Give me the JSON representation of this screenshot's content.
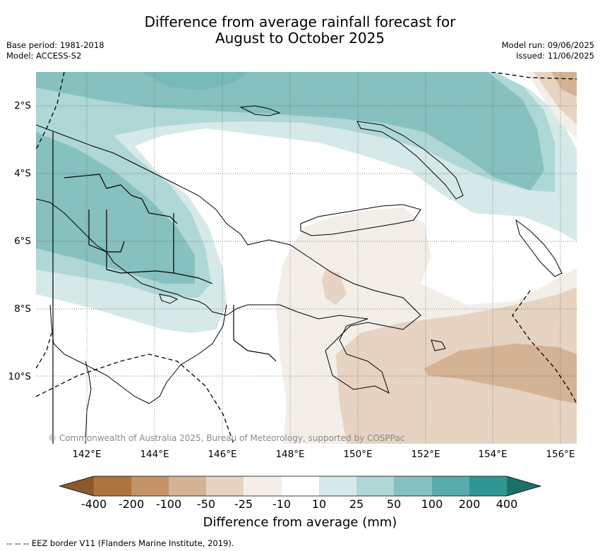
{
  "title_line1": "Difference from average rainfall forecast for",
  "title_line2": "August to October 2025",
  "meta_left": [
    "Base period: 1981-2018",
    "Model: ACCESS-S2"
  ],
  "meta_right": [
    "Model run: 09/06/2025",
    "Issued: 11/06/2025"
  ],
  "copyright": "© Commonwealth of Australia 2025, Bureau of Meteorology, supported by COSPPac",
  "longitude_ticks": [
    "142°E",
    "144°E",
    "146°E",
    "148°E",
    "150°E",
    "152°E",
    "154°E",
    "156°E"
  ],
  "latitude_ticks": [
    "2°S",
    "4°S",
    "6°S",
    "8°S",
    "10°S"
  ],
  "colorbar": {
    "title": "Difference from average (mm)",
    "labels": [
      "-400",
      "-200",
      "-100",
      "-50",
      "-25",
      "-10",
      "10",
      "25",
      "50",
      "100",
      "200",
      "400"
    ],
    "colors": {
      "below_-400": "#8b5a2b",
      "-400_-200": "#ae7440",
      "-200_-100": "#c29468",
      "-100_-50": "#d4b394",
      "-50_-25": "#e6d3c1",
      "-25_-10": "#f3eee8",
      "-10_10": "#ffffff",
      "10_25": "#d5e9e8",
      "25_50": "#aed7d6",
      "50_100": "#86c0bf",
      "100_200": "#5aabab",
      "200_400": "#2f9793",
      "above_400": "#1f6e6b"
    }
  },
  "footnote": "--  --  -- EEZ border V11 (Flanders Marine Institute, 2019)."
}
